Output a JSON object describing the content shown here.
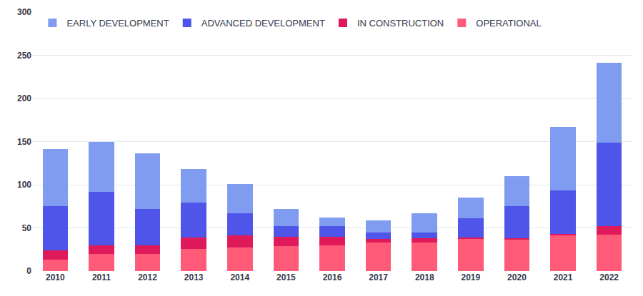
{
  "chart_data": {
    "type": "bar",
    "stacked": true,
    "grid": true,
    "legend": "top-left",
    "categories": [
      "2010",
      "2011",
      "2012",
      "2013",
      "2014",
      "2015",
      "2016",
      "2017",
      "2018",
      "2019",
      "2020",
      "2021",
      "2022"
    ],
    "series": [
      {
        "name": "EARLY DEVELOPMENT",
        "color": "#7f9cf0",
        "values": [
          66,
          58,
          64,
          39,
          34,
          20,
          10,
          14,
          22,
          24,
          35,
          74,
          92
        ]
      },
      {
        "name": "ADVANCED DEVELOPMENT",
        "color": "#4f55e8",
        "values": [
          51,
          62,
          42,
          40,
          26,
          12,
          12,
          8,
          7,
          22,
          37,
          50,
          97
        ]
      },
      {
        "name": "IN CONSTRUCTION",
        "color": "#e0195a",
        "values": [
          11,
          10,
          10,
          13,
          14,
          11,
          10,
          4,
          5,
          2,
          2,
          2,
          10
        ]
      },
      {
        "name": "OPERATIONAL",
        "color": "#ff5a78",
        "values": [
          13,
          20,
          20,
          26,
          27,
          29,
          30,
          33,
          33,
          37,
          36,
          41,
          42
        ]
      }
    ],
    "ylim": [
      0,
      300
    ],
    "yticks": [
      0,
      50,
      100,
      150,
      200,
      250,
      300
    ]
  }
}
